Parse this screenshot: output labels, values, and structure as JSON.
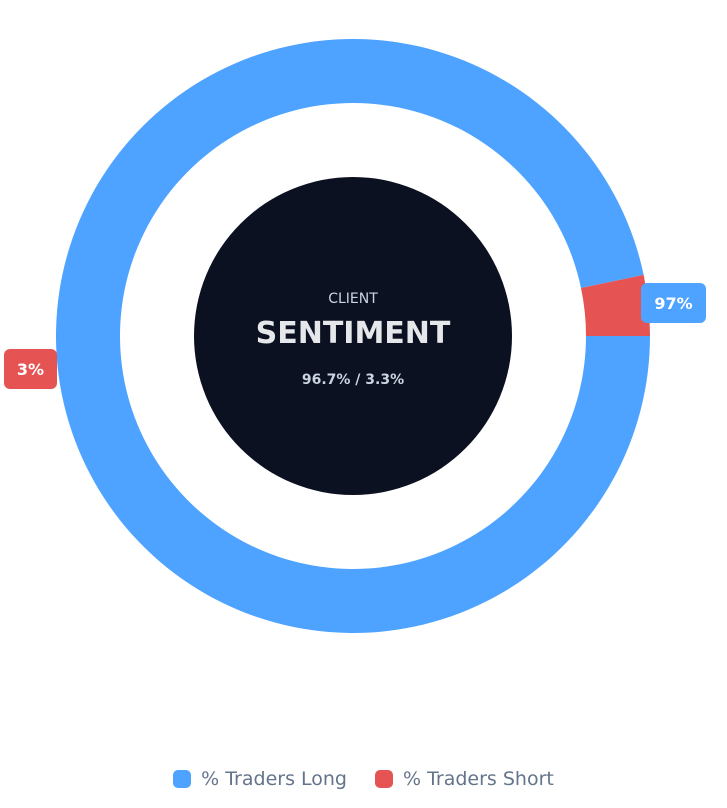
{
  "chart_data": {
    "type": "pie",
    "variant": "donut",
    "start_angle_deg": 0,
    "direction": "clockwise",
    "series": [
      {
        "name": "% Traders Long",
        "value": 96.7,
        "label": "97%",
        "color": "#4da3ff"
      },
      {
        "name": "% Traders Short",
        "value": 3.3,
        "label": "3%",
        "color": "#e55353"
      }
    ],
    "center": {
      "subtitle": "CLIENT",
      "title": "SENTIMENT",
      "ratio": "96.7% / 3.3%",
      "color": "#0b1120"
    },
    "legend_position": "bottom-center"
  }
}
